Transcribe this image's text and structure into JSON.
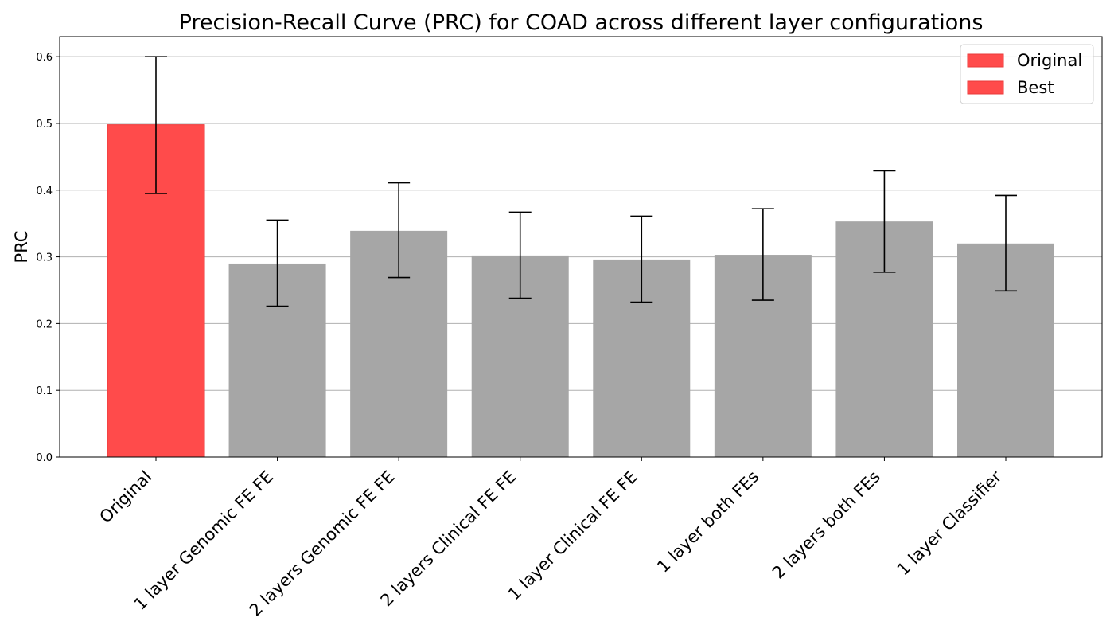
{
  "chart_data": {
    "type": "bar",
    "title": "Precision-Recall Curve (PRC) for COAD across different layer configurations",
    "xlabel": "",
    "ylabel": "PRC",
    "ylim": [
      0,
      0.63
    ],
    "yticks": [
      "0.0",
      "0.1",
      "0.2",
      "0.3",
      "0.4",
      "0.5",
      "0.6"
    ],
    "ytick_values": [
      0,
      0.1,
      0.2,
      0.3,
      0.4,
      0.5,
      0.6
    ],
    "grid": "horizontal",
    "legend_position": "top-right",
    "categories": [
      "Original",
      "1 layer Genomic FE FE",
      "2 layers Genomic FE FE",
      "2 layers Clinical FE FE",
      "1 layer Clinical FE FE",
      "1 layer both FEs",
      "2 layers both FEs",
      "1 layer Classifier"
    ],
    "values": [
      0.498,
      0.29,
      0.339,
      0.302,
      0.296,
      0.303,
      0.353,
      0.32
    ],
    "error_low": [
      0.395,
      0.226,
      0.269,
      0.238,
      0.232,
      0.235,
      0.277,
      0.249
    ],
    "error_high": [
      0.6,
      0.355,
      0.411,
      0.367,
      0.361,
      0.372,
      0.429,
      0.392
    ],
    "bar_colors": [
      "#ff4b4b",
      "#a6a6a6",
      "#a6a6a6",
      "#a6a6a6",
      "#a6a6a6",
      "#a6a6a6",
      "#a6a6a6",
      "#a6a6a6"
    ],
    "legend": [
      {
        "label": "Original",
        "color": "#ff4b4b"
      },
      {
        "label": "Best",
        "color": "#ff4b4b"
      }
    ]
  }
}
